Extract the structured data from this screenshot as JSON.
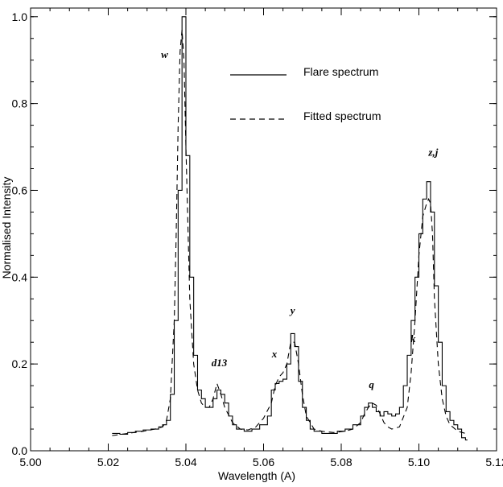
{
  "chart_data": {
    "type": "line",
    "xlabel": "Wavelength (A)",
    "ylabel": "Normalised Intensity",
    "xlim": [
      5.0,
      5.12
    ],
    "ylim": [
      0.0,
      1.02
    ],
    "x_ticks": [
      5.0,
      5.02,
      5.04,
      5.06,
      5.08,
      5.1,
      5.12
    ],
    "x_tick_labels": [
      "5.00",
      "5.02",
      "5.04",
      "5.06",
      "5.08",
      "5.10",
      "5.12"
    ],
    "y_ticks": [
      0.0,
      0.2,
      0.4,
      0.6,
      0.8,
      1.0
    ],
    "y_tick_labels": [
      "0.0",
      "0.2",
      "0.4",
      "0.6",
      "0.8",
      "1.0"
    ],
    "grid": false,
    "legend": {
      "placement": "top-center",
      "entries": [
        {
          "label": "Flare spectrum",
          "style": "solid"
        },
        {
          "label": "Fitted spectrum",
          "style": "dashed"
        }
      ]
    },
    "series": [
      {
        "name": "Flare spectrum",
        "style": "steps",
        "color": "#000000",
        "x": [
          5.021,
          5.023,
          5.025,
          5.027,
          5.029,
          5.031,
          5.033,
          5.034,
          5.035,
          5.036,
          5.037,
          5.038,
          5.039,
          5.04,
          5.041,
          5.042,
          5.043,
          5.044,
          5.045,
          5.046,
          5.047,
          5.048,
          5.049,
          5.05,
          5.051,
          5.052,
          5.053,
          5.055,
          5.057,
          5.059,
          5.061,
          5.062,
          5.063,
          5.064,
          5.065,
          5.066,
          5.067,
          5.068,
          5.069,
          5.07,
          5.071,
          5.072,
          5.073,
          5.075,
          5.077,
          5.079,
          5.081,
          5.083,
          5.085,
          5.086,
          5.087,
          5.088,
          5.089,
          5.09,
          5.091,
          5.092,
          5.093,
          5.094,
          5.095,
          5.096,
          5.097,
          5.098,
          5.099,
          5.1,
          5.101,
          5.102,
          5.103,
          5.104,
          5.105,
          5.106,
          5.107,
          5.108,
          5.109,
          5.11,
          5.111,
          5.112
        ],
        "values": [
          0.04,
          0.038,
          0.042,
          0.045,
          0.048,
          0.05,
          0.055,
          0.06,
          0.07,
          0.13,
          0.3,
          0.6,
          1.0,
          0.68,
          0.4,
          0.22,
          0.14,
          0.12,
          0.1,
          0.1,
          0.12,
          0.14,
          0.13,
          0.11,
          0.08,
          0.06,
          0.05,
          0.045,
          0.05,
          0.06,
          0.08,
          0.14,
          0.155,
          0.16,
          0.165,
          0.2,
          0.27,
          0.24,
          0.16,
          0.1,
          0.07,
          0.05,
          0.045,
          0.04,
          0.04,
          0.045,
          0.05,
          0.06,
          0.08,
          0.1,
          0.11,
          0.1,
          0.09,
          0.08,
          0.09,
          0.085,
          0.08,
          0.085,
          0.1,
          0.15,
          0.22,
          0.3,
          0.4,
          0.5,
          0.58,
          0.62,
          0.55,
          0.38,
          0.25,
          0.15,
          0.09,
          0.07,
          0.06,
          0.05,
          0.03,
          0.025
        ]
      },
      {
        "name": "Fitted spectrum",
        "style": "dashed",
        "color": "#000000",
        "x": [
          5.021,
          5.025,
          5.029,
          5.032,
          5.034,
          5.035,
          5.036,
          5.037,
          5.0375,
          5.038,
          5.0385,
          5.039,
          5.0395,
          5.04,
          5.041,
          5.042,
          5.043,
          5.044,
          5.045,
          5.046,
          5.047,
          5.048,
          5.049,
          5.05,
          5.052,
          5.054,
          5.056,
          5.058,
          5.06,
          5.062,
          5.063,
          5.064,
          5.065,
          5.066,
          5.067,
          5.068,
          5.069,
          5.07,
          5.071,
          5.073,
          5.075,
          5.078,
          5.081,
          5.083,
          5.085,
          5.086,
          5.087,
          5.088,
          5.089,
          5.09,
          5.091,
          5.092,
          5.093,
          5.095,
          5.097,
          5.098,
          5.099,
          5.1,
          5.101,
          5.102,
          5.1025,
          5.103,
          5.1035,
          5.104,
          5.105,
          5.106,
          5.107,
          5.108,
          5.11,
          5.112
        ],
        "values": [
          0.035,
          0.04,
          0.045,
          0.05,
          0.055,
          0.07,
          0.12,
          0.3,
          0.5,
          0.75,
          0.92,
          0.97,
          0.9,
          0.7,
          0.35,
          0.2,
          0.14,
          0.11,
          0.1,
          0.1,
          0.12,
          0.155,
          0.13,
          0.1,
          0.065,
          0.05,
          0.048,
          0.055,
          0.075,
          0.11,
          0.15,
          0.17,
          0.18,
          0.2,
          0.25,
          0.25,
          0.2,
          0.13,
          0.08,
          0.05,
          0.045,
          0.042,
          0.045,
          0.05,
          0.065,
          0.085,
          0.1,
          0.11,
          0.105,
          0.085,
          0.065,
          0.055,
          0.05,
          0.055,
          0.1,
          0.18,
          0.3,
          0.45,
          0.54,
          0.57,
          0.58,
          0.57,
          0.5,
          0.35,
          0.2,
          0.12,
          0.08,
          0.06,
          0.045,
          0.04
        ]
      }
    ],
    "annotations": [
      {
        "text": "w",
        "x": 5.0345,
        "y": 0.905
      },
      {
        "text": "d13",
        "x": 5.0486,
        "y": 0.195
      },
      {
        "text": "x",
        "x": 5.0628,
        "y": 0.215
      },
      {
        "text": "y",
        "x": 5.0675,
        "y": 0.315
      },
      {
        "text": "q",
        "x": 5.0878,
        "y": 0.145
      },
      {
        "text": "k",
        "x": 5.0985,
        "y": 0.25
      },
      {
        "text": "z,j",
        "x": 5.1037,
        "y": 0.68
      }
    ]
  }
}
